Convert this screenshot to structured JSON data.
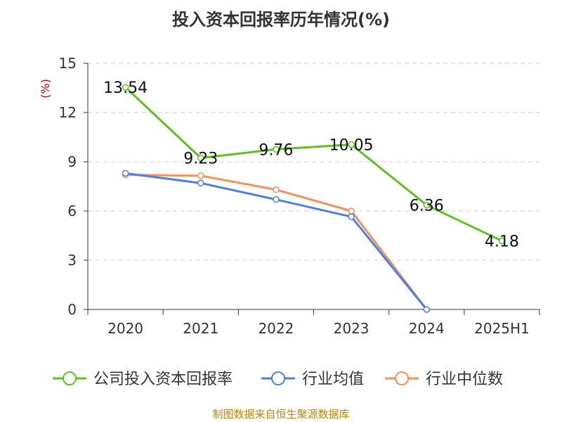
{
  "chart_data": {
    "type": "line",
    "title": "投入资本回报率历年情况(%)",
    "ylabel": "(%)",
    "xlabel": "",
    "categories": [
      "2020",
      "2021",
      "2022",
      "2023",
      "2024",
      "2025H1"
    ],
    "ylim": [
      0,
      15
    ],
    "yticks": [
      0,
      3,
      6,
      9,
      12,
      15
    ],
    "grid": true,
    "legend_position": "bottom",
    "series": [
      {
        "name": "公司投入资本回报率",
        "color": "#5cc21f",
        "values": [
          13.54,
          9.23,
          9.76,
          10.05,
          6.36,
          4.18
        ],
        "labels": [
          "13.54",
          "9.23",
          "9.76",
          "10.05",
          "6.36",
          "4.18"
        ]
      },
      {
        "name": "行业均值",
        "color": "#4f7fe0",
        "values": [
          8.3,
          7.7,
          6.7,
          5.65,
          0.0,
          null
        ]
      },
      {
        "name": "行业中位数",
        "color": "#f5905a",
        "values": [
          8.2,
          8.15,
          7.3,
          6.0,
          0.0,
          null
        ]
      }
    ]
  },
  "source": "制图数据来自恒生聚源数据库"
}
